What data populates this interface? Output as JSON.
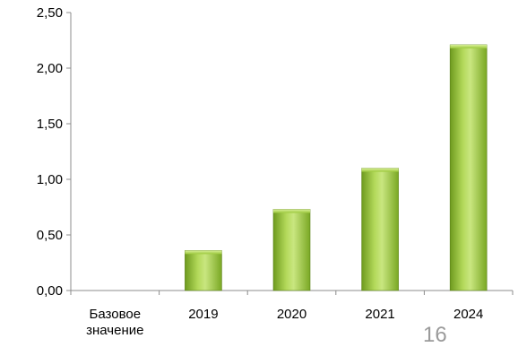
{
  "chart_data": {
    "type": "bar",
    "categories": [
      "Базовое значение",
      "2019",
      "2020",
      "2021",
      "2024"
    ],
    "values": [
      0,
      0.36,
      0.73,
      1.1,
      2.21
    ],
    "ylim": [
      0,
      2.5
    ],
    "yticks": [
      "0,00",
      "0,50",
      "1,00",
      "1,50",
      "2,00",
      "2,50"
    ],
    "grid": false,
    "bar_color": "#8dbb2f",
    "bar_highlight": "#c9e680",
    "bar_shadow": "#5d821a"
  },
  "page_number": "16"
}
